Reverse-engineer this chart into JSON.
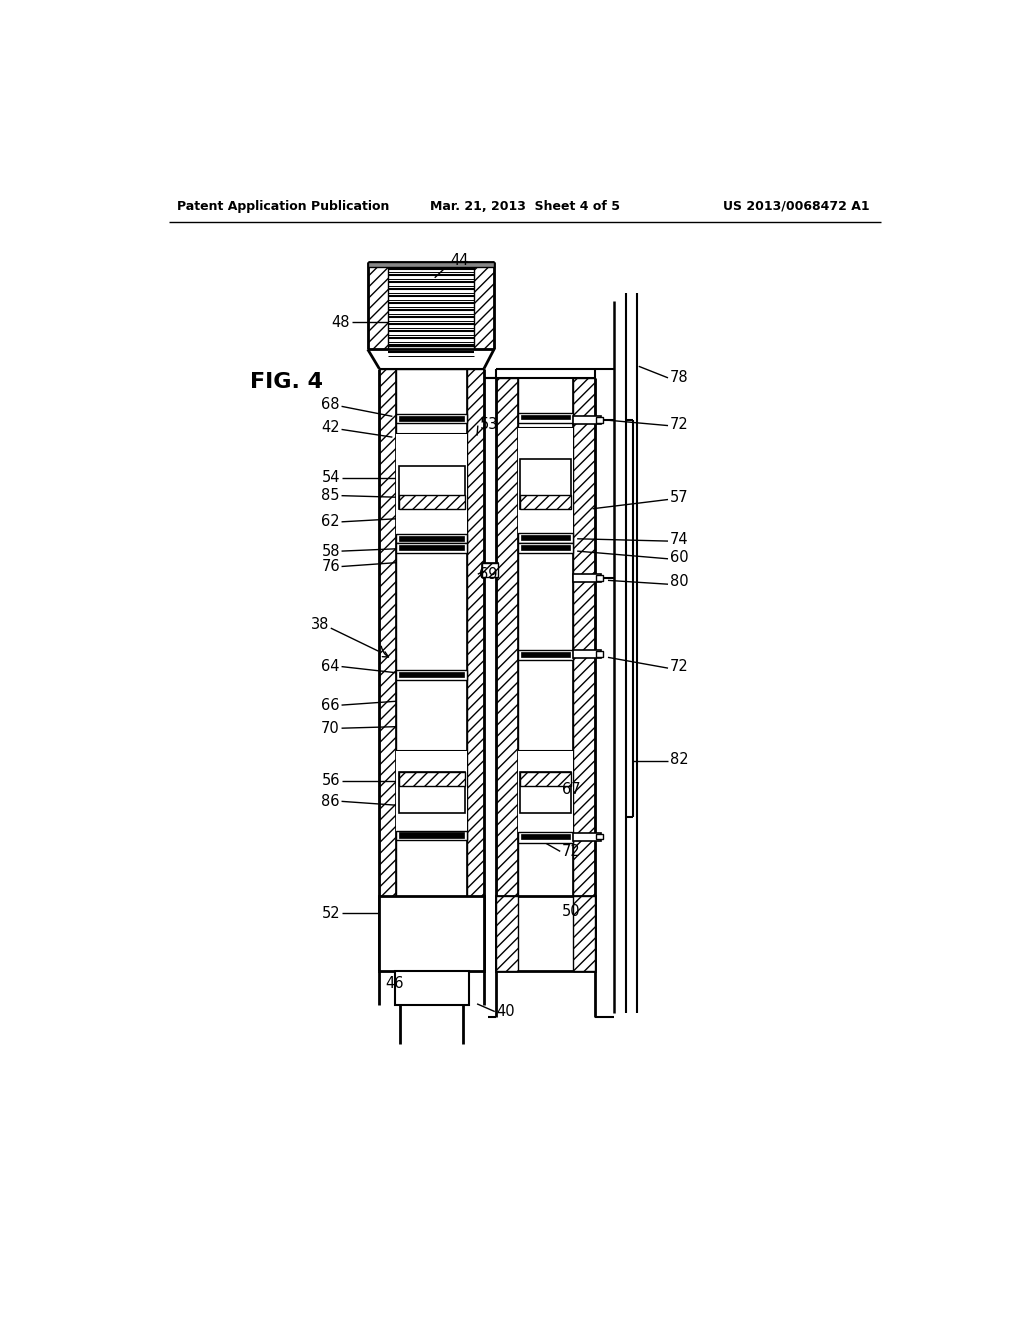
{
  "bg_color": "#ffffff",
  "header_left": "Patent Application Publication",
  "header_center": "Mar. 21, 2013  Sheet 4 of 5",
  "header_right": "US 2013/0068472 A1",
  "fig_label": "FIG. 4",
  "img_scale": 1.0
}
